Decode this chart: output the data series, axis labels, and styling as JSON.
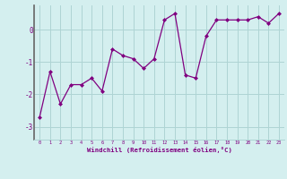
{
  "x": [
    0,
    1,
    2,
    3,
    4,
    5,
    6,
    7,
    8,
    9,
    10,
    11,
    12,
    13,
    14,
    15,
    16,
    17,
    18,
    19,
    20,
    21,
    22,
    23
  ],
  "y": [
    -2.7,
    -1.3,
    -2.3,
    -1.7,
    -1.7,
    -1.5,
    -1.9,
    -0.6,
    -0.8,
    -0.9,
    -1.2,
    -0.9,
    0.3,
    0.5,
    -1.4,
    -1.5,
    -0.2,
    0.3,
    0.3,
    0.3,
    0.3,
    0.4,
    0.2,
    0.5
  ],
  "line_color": "#800080",
  "marker": "D",
  "marker_size": 2,
  "bg_color": "#d4efef",
  "grid_color": "#aed4d4",
  "xlabel": "Windchill (Refroidissement éolien,°C)",
  "xlabel_color": "#800080",
  "ylabel_ticks": [
    "-3",
    "-2",
    "-1",
    "0"
  ],
  "yticks": [
    -3,
    -2,
    -1,
    0
  ],
  "ylim": [
    -3.4,
    0.75
  ],
  "xlim": [
    -0.5,
    23.5
  ],
  "left_spine_color": "#666666"
}
